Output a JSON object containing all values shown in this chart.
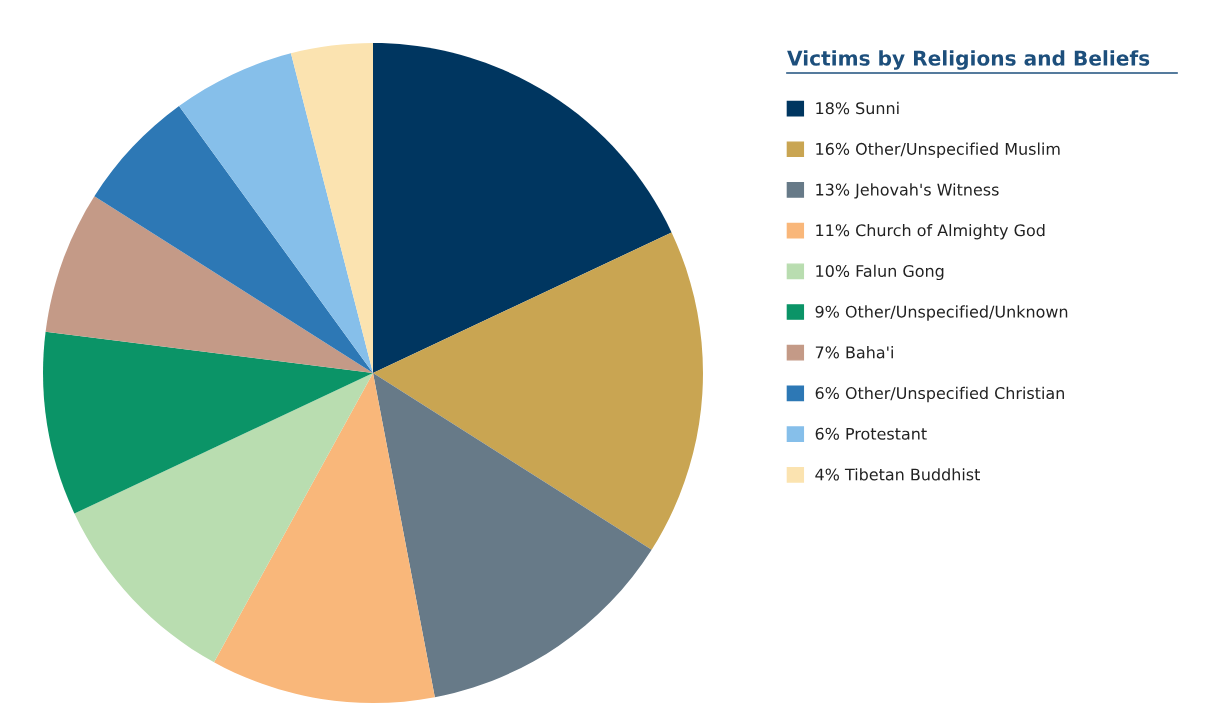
{
  "chart_data": {
    "type": "pie",
    "legend_title": "Victims by Religions and Beliefs",
    "categories": [
      "Sunni",
      "Other/Unspecified Muslim",
      "Jehovah's Witness",
      "Church of Almighty God",
      "Falun Gong",
      "Other/Unspecified/Unknown",
      "Baha'i",
      "Other/Unspecified Christian",
      "Protestant",
      "Tibetan Buddhist"
    ],
    "values": [
      18,
      16,
      13,
      11,
      10,
      9,
      7,
      6,
      6,
      4
    ],
    "value_labels": [
      "18%",
      "16%",
      "13%",
      "11%",
      "10%",
      "9%",
      "7%",
      "6%",
      "6%",
      "4%"
    ],
    "colors": [
      "#003660",
      "#c9a552",
      "#677a88",
      "#f9b77a",
      "#b9ddb0",
      "#0b9467",
      "#c49a87",
      "#2d78b5",
      "#86bfea",
      "#fbe3b0"
    ],
    "legend": "right"
  }
}
